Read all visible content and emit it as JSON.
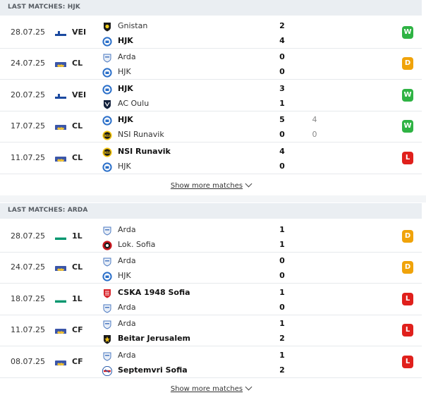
{
  "colors": {
    "win": "#2fb344",
    "draw": "#f0a30a",
    "loss": "#e0201c",
    "header_bg": "#eaeef2"
  },
  "hjk": {
    "header": "LAST MATCHES: HJK",
    "show_more": "Show more matches",
    "matches": [
      {
        "date": "28.07.25",
        "flag": "finland-flag-icon",
        "comp": "VEI",
        "home": {
          "name": "Gnistan",
          "logo": "gnistan-logo-icon",
          "winner": false,
          "score": "2",
          "pen": ""
        },
        "away": {
          "name": "HJK",
          "logo": "hjk-logo-icon",
          "winner": true,
          "score": "4",
          "pen": ""
        },
        "result": "W"
      },
      {
        "date": "24.07.25",
        "flag": "world-flag-icon",
        "comp": "CL",
        "home": {
          "name": "Arda",
          "logo": "arda-logo-icon",
          "winner": false,
          "score": "0",
          "pen": ""
        },
        "away": {
          "name": "HJK",
          "logo": "hjk-logo-icon",
          "winner": false,
          "score": "0",
          "pen": ""
        },
        "result": "D"
      },
      {
        "date": "20.07.25",
        "flag": "finland-flag-icon",
        "comp": "VEI",
        "home": {
          "name": "HJK",
          "logo": "hjk-logo-icon",
          "winner": true,
          "score": "3",
          "pen": ""
        },
        "away": {
          "name": "AC Oulu",
          "logo": "ac-oulu-logo-icon",
          "winner": false,
          "score": "1",
          "pen": ""
        },
        "result": "W"
      },
      {
        "date": "17.07.25",
        "flag": "world-flag-icon",
        "comp": "CL",
        "home": {
          "name": "HJK",
          "logo": "hjk-logo-icon",
          "winner": true,
          "score": "5",
          "pen": "4"
        },
        "away": {
          "name": "NSI Runavik",
          "logo": "nsi-logo-icon",
          "winner": false,
          "score": "0",
          "pen": "0"
        },
        "result": "W"
      },
      {
        "date": "11.07.25",
        "flag": "world-flag-icon",
        "comp": "CL",
        "home": {
          "name": "NSI Runavik",
          "logo": "nsi-logo-icon",
          "winner": true,
          "score": "4",
          "pen": ""
        },
        "away": {
          "name": "HJK",
          "logo": "hjk-logo-icon",
          "winner": false,
          "score": "0",
          "pen": ""
        },
        "result": "L"
      }
    ]
  },
  "arda": {
    "header": "LAST MATCHES: ARDA",
    "show_more": "Show more matches",
    "matches": [
      {
        "date": "28.07.25",
        "flag": "bulgaria-flag-icon",
        "comp": "1L",
        "home": {
          "name": "Arda",
          "logo": "arda-logo-icon",
          "winner": false,
          "score": "1",
          "pen": ""
        },
        "away": {
          "name": "Lok. Sofia",
          "logo": "lok-sofia-logo-icon",
          "winner": false,
          "score": "1",
          "pen": ""
        },
        "result": "D"
      },
      {
        "date": "24.07.25",
        "flag": "world-flag-icon",
        "comp": "CL",
        "home": {
          "name": "Arda",
          "logo": "arda-logo-icon",
          "winner": false,
          "score": "0",
          "pen": ""
        },
        "away": {
          "name": "HJK",
          "logo": "hjk-logo-icon",
          "winner": false,
          "score": "0",
          "pen": ""
        },
        "result": "D"
      },
      {
        "date": "18.07.25",
        "flag": "bulgaria-flag-icon",
        "comp": "1L",
        "home": {
          "name": "CSKA 1948 Sofia",
          "logo": "cska-1948-logo-icon",
          "winner": true,
          "score": "1",
          "pen": ""
        },
        "away": {
          "name": "Arda",
          "logo": "arda-logo-icon",
          "winner": false,
          "score": "0",
          "pen": ""
        },
        "result": "L"
      },
      {
        "date": "11.07.25",
        "flag": "world-flag-icon",
        "comp": "CF",
        "home": {
          "name": "Arda",
          "logo": "arda-logo-icon",
          "winner": false,
          "score": "1",
          "pen": ""
        },
        "away": {
          "name": "Beitar Jerusalem",
          "logo": "beitar-logo-icon",
          "winner": true,
          "score": "2",
          "pen": ""
        },
        "result": "L"
      },
      {
        "date": "08.07.25",
        "flag": "world-flag-icon",
        "comp": "CF",
        "home": {
          "name": "Arda",
          "logo": "arda-logo-icon",
          "winner": false,
          "score": "1",
          "pen": ""
        },
        "away": {
          "name": "Septemvri Sofia",
          "logo": "septemvri-logo-icon",
          "winner": true,
          "score": "2",
          "pen": ""
        },
        "result": "L"
      }
    ]
  }
}
